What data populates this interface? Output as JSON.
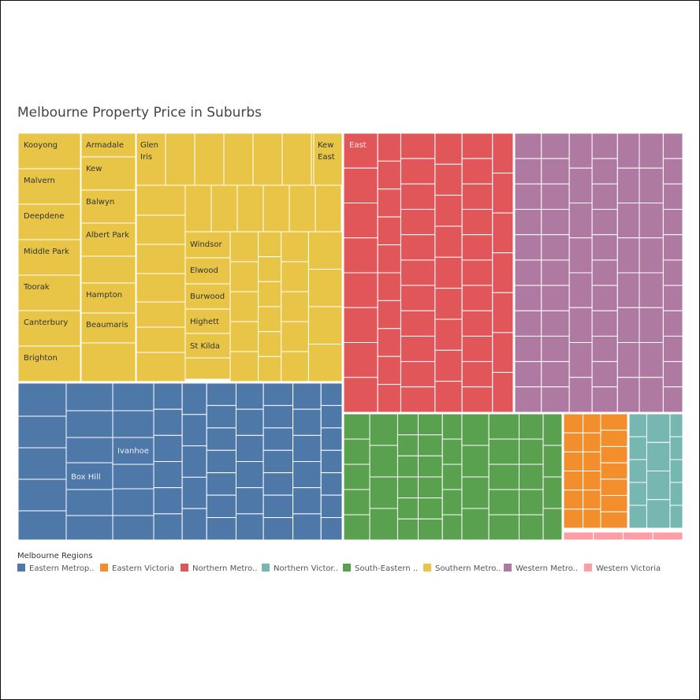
{
  "chart_data": {
    "type": "treemap",
    "title": "Melbourne Property Price in Suburbs",
    "legend_title": "Melbourne Regions",
    "legend_placement": "bottom",
    "regions": [
      {
        "name": "Southern Metropolitan",
        "legend_label": "Southern Metro..",
        "color": "#E8C547",
        "relative_size": 0.304,
        "labeled_suburbs": [
          "Kooyong",
          "Malvern",
          "Deepdene",
          "Middle Park",
          "Toorak",
          "Canterbury",
          "Brighton",
          "Armadale",
          "Kew",
          "Balwyn",
          "Albert Park",
          "Hampton",
          "Beaumaris",
          "Glen Iris",
          "Kew East",
          "Windsor",
          "Elwood",
          "Burwood",
          "Highett",
          "St Kilda"
        ]
      },
      {
        "name": "Eastern Metropolitan",
        "legend_label": "Eastern Metrop..",
        "color": "#4E78A8",
        "relative_size": 0.185,
        "labeled_suburbs": [
          "Ivanhoe",
          "Box Hill"
        ]
      },
      {
        "name": "Northern Metropolitan",
        "legend_label": "Northern Metro..",
        "color": "#E15759",
        "relative_size": 0.154,
        "labeled_suburbs": [
          "East"
        ]
      },
      {
        "name": "Western Metropolitan",
        "legend_label": "Western Metro..",
        "color": "#AF7AA1",
        "relative_size": 0.154,
        "labeled_suburbs": []
      },
      {
        "name": "South-Eastern Metropolitan",
        "legend_label": "South-Eastern ..",
        "color": "#59A14F",
        "relative_size": 0.115,
        "labeled_suburbs": []
      },
      {
        "name": "Eastern Victoria",
        "legend_label": "Eastern Victoria",
        "color": "#F28E2B",
        "relative_size": 0.031,
        "labeled_suburbs": []
      },
      {
        "name": "Northern Victoria",
        "legend_label": "Northern Victor..",
        "color": "#76B7B2",
        "relative_size": 0.034,
        "labeled_suburbs": []
      },
      {
        "name": "Western Victoria",
        "legend_label": "Western Victoria",
        "color": "#FF9DA7",
        "relative_size": 0.006,
        "labeled_suburbs": []
      }
    ],
    "legend_order": [
      "Eastern Metropolitan",
      "Eastern Victoria",
      "Northern Metropolitan",
      "Northern Victoria",
      "South-Eastern Metropolitan",
      "Southern Metropolitan",
      "Western Metropolitan",
      "Western Victoria"
    ]
  }
}
